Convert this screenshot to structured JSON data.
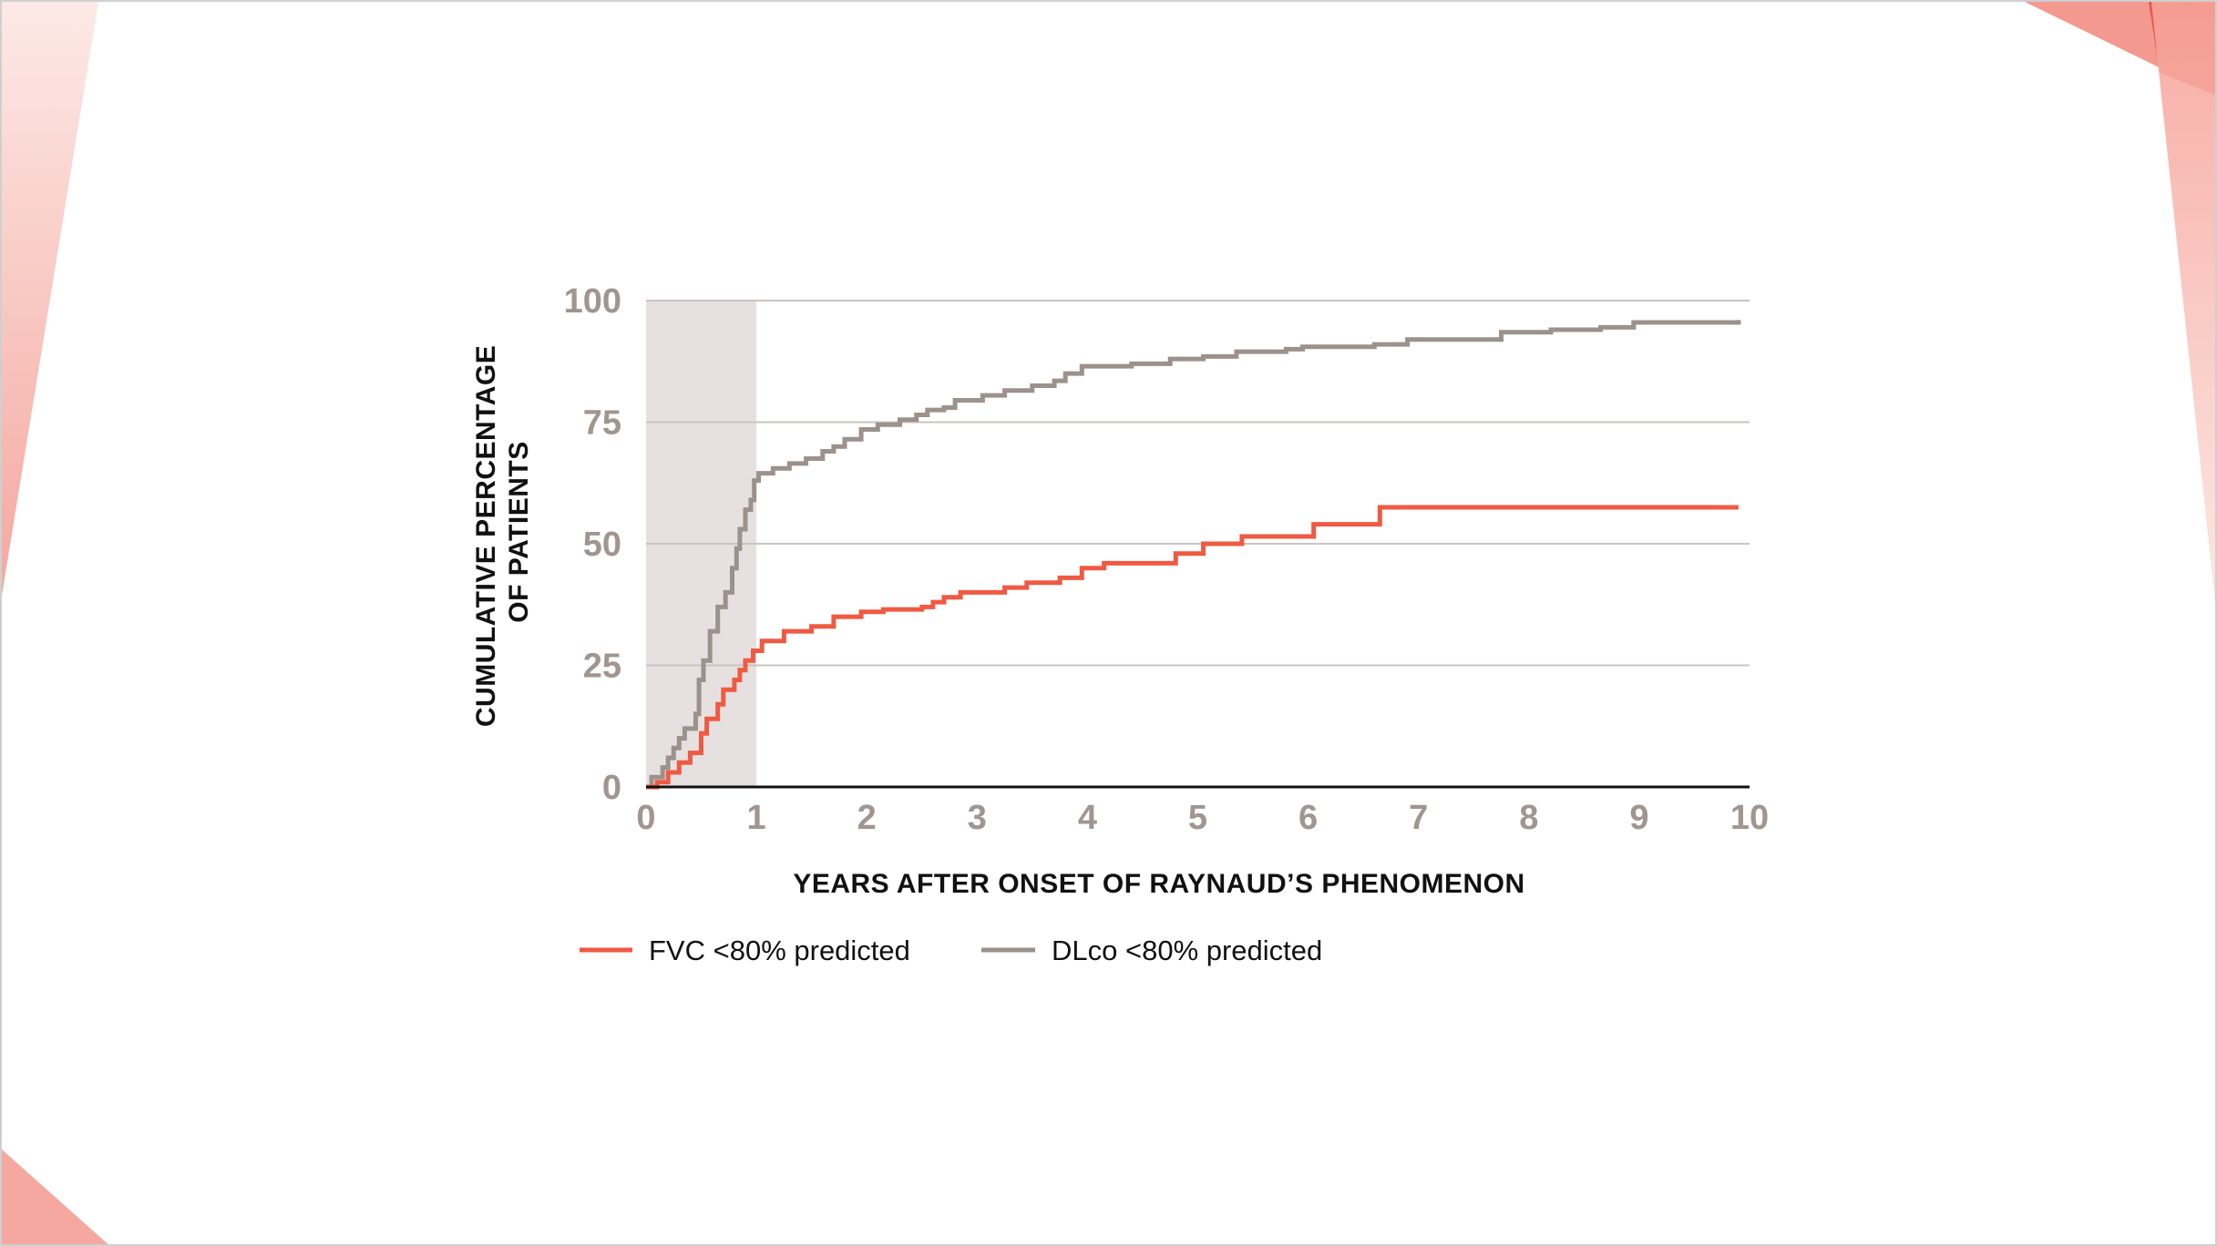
{
  "colors": {
    "fvc": "#ef5a43",
    "dlco": "#9c918b",
    "shade": "#e6e1e0",
    "grid": "#c9c4c2",
    "tick_text": "#a1958f",
    "accent_red": "#e8584b",
    "accent_pink": "#f6a39a"
  },
  "chart_data": {
    "type": "line",
    "step": true,
    "ylabel_line1": "CUMULATIVE PERCENTAGE",
    "ylabel_line2": "OF PATIENTS",
    "xlabel": "YEARS AFTER ONSET OF RAYNAUD’S PHENOMENON",
    "xlim": [
      0,
      10
    ],
    "ylim": [
      0,
      100
    ],
    "x_ticks": [
      "0",
      "1",
      "2",
      "3",
      "4",
      "5",
      "6",
      "7",
      "8",
      "9",
      "10"
    ],
    "y_ticks": [
      "0",
      "25",
      "50",
      "75",
      "100"
    ],
    "grid": "horizontal",
    "shaded_region": [
      0,
      1
    ],
    "legend_position": "bottom",
    "series": [
      {
        "name": "FVC <80% predicted",
        "color_key": "fvc",
        "points": [
          [
            0,
            0
          ],
          [
            0.1,
            1
          ],
          [
            0.2,
            3
          ],
          [
            0.3,
            5
          ],
          [
            0.4,
            7
          ],
          [
            0.5,
            11
          ],
          [
            0.55,
            14
          ],
          [
            0.65,
            17
          ],
          [
            0.7,
            20
          ],
          [
            0.8,
            22
          ],
          [
            0.85,
            24
          ],
          [
            0.9,
            26
          ],
          [
            0.97,
            28
          ],
          [
            1.05,
            30
          ],
          [
            1.25,
            32
          ],
          [
            1.5,
            33
          ],
          [
            1.7,
            35
          ],
          [
            1.95,
            36
          ],
          [
            2.15,
            36.5
          ],
          [
            2.5,
            37
          ],
          [
            2.6,
            38
          ],
          [
            2.7,
            39
          ],
          [
            2.85,
            40
          ],
          [
            3.25,
            41
          ],
          [
            3.45,
            42
          ],
          [
            3.75,
            43
          ],
          [
            3.95,
            45
          ],
          [
            4.15,
            46
          ],
          [
            4.8,
            48
          ],
          [
            5.05,
            50
          ],
          [
            5.4,
            51.5
          ],
          [
            6.05,
            54
          ],
          [
            6.65,
            57.5
          ],
          [
            9.9,
            57.5
          ]
        ]
      },
      {
        "name": "DLco <80% predicted",
        "color_key": "dlco",
        "points": [
          [
            0,
            0
          ],
          [
            0.05,
            2
          ],
          [
            0.15,
            4
          ],
          [
            0.2,
            6
          ],
          [
            0.25,
            8
          ],
          [
            0.3,
            10
          ],
          [
            0.35,
            12
          ],
          [
            0.45,
            15
          ],
          [
            0.48,
            22
          ],
          [
            0.52,
            26
          ],
          [
            0.58,
            32
          ],
          [
            0.65,
            37
          ],
          [
            0.72,
            40
          ],
          [
            0.78,
            45
          ],
          [
            0.82,
            49
          ],
          [
            0.85,
            53
          ],
          [
            0.9,
            57
          ],
          [
            0.95,
            59
          ],
          [
            0.98,
            63
          ],
          [
            1.02,
            64.5
          ],
          [
            1.15,
            65.5
          ],
          [
            1.3,
            66.5
          ],
          [
            1.45,
            67.5
          ],
          [
            1.6,
            69
          ],
          [
            1.7,
            70
          ],
          [
            1.8,
            71.5
          ],
          [
            1.95,
            73.5
          ],
          [
            2.1,
            74.5
          ],
          [
            2.3,
            75.5
          ],
          [
            2.45,
            76.5
          ],
          [
            2.55,
            77.5
          ],
          [
            2.7,
            78
          ],
          [
            2.8,
            79.5
          ],
          [
            3.05,
            80.5
          ],
          [
            3.25,
            81.5
          ],
          [
            3.5,
            82.5
          ],
          [
            3.7,
            83.5
          ],
          [
            3.8,
            85
          ],
          [
            3.95,
            86.5
          ],
          [
            4.4,
            87
          ],
          [
            4.75,
            88
          ],
          [
            5.05,
            88.5
          ],
          [
            5.35,
            89.5
          ],
          [
            5.8,
            90
          ],
          [
            5.95,
            90.5
          ],
          [
            6.6,
            91
          ],
          [
            6.9,
            92
          ],
          [
            7.75,
            93.5
          ],
          [
            8.2,
            94
          ],
          [
            8.65,
            94.5
          ],
          [
            8.95,
            95.5
          ],
          [
            9.9,
            96
          ]
        ]
      }
    ]
  }
}
